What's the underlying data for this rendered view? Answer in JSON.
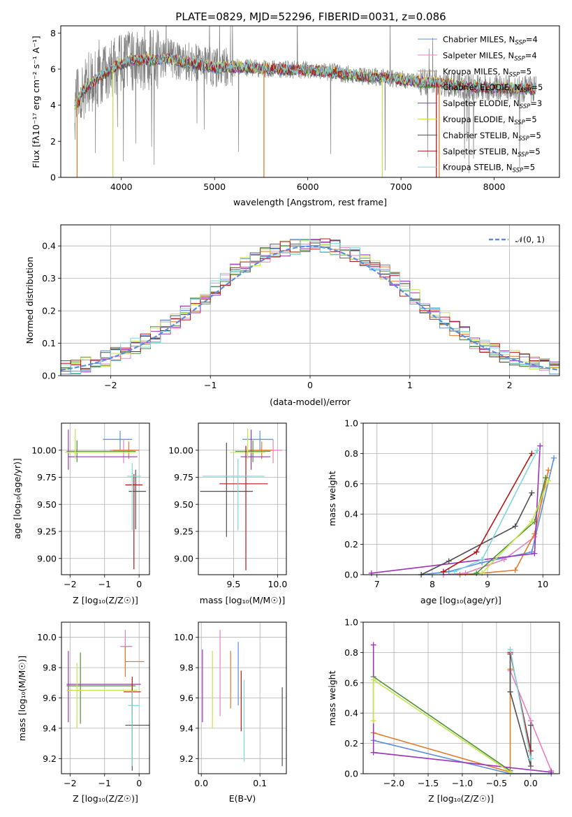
{
  "colors": {
    "chabrier_miles": "#5b8dde",
    "salpeter_miles": "#e582c4",
    "kroupa_miles": "#e07b2c",
    "chabrier_elodie": "#4f8f3a",
    "salpeter_elodie": "#9b34b6",
    "kroupa_elodie": "#c5e34f",
    "chabrier_stelib": "#505050",
    "salpeter_stelib": "#b01818",
    "kroupa_stelib": "#7fd6d9",
    "data_gray": "#7f7f7f",
    "normal_curve": "#5b8dde"
  },
  "chart_data": [
    {
      "type": "line",
      "title": "PLATE=0829, MJD=52296, FIBERID=0031, z=0.086",
      "xlabel": "wavelength [Angstrom, rest frame]",
      "ylabel": "Flux [fλ10⁻¹⁷ erg cm⁻² s⁻¹ A⁻¹]",
      "xlim": [
        3350,
        8700
      ],
      "ylim": [
        0,
        8.4
      ],
      "xticks": [
        4000,
        5000,
        6000,
        7000,
        8000
      ],
      "yticks": [
        0,
        2,
        4,
        6,
        8
      ],
      "grid": false,
      "legend_position": "upper-right",
      "legend": [
        {
          "label": "Chabrier MILES, N",
          "sub": "SSP",
          "tail": "=4"
        },
        {
          "label": "Salpeter MILES, N",
          "sub": "SSP",
          "tail": "=4"
        },
        {
          "label": "Kroupa MILES, N",
          "sub": "SSP",
          "tail": "=5"
        },
        {
          "label": "Chabrier ELODIE, N",
          "sub": "SSP",
          "tail": "=5"
        },
        {
          "label": "Salpeter ELODIE, N",
          "sub": "SSP",
          "tail": "=3"
        },
        {
          "label": "Kroupa ELODIE, N",
          "sub": "SSP",
          "tail": "=5"
        },
        {
          "label": "Chabrier STELIB, N",
          "sub": "SSP",
          "tail": "=5"
        },
        {
          "label": "Salpeter STELIB, N",
          "sub": "SSP",
          "tail": "=5"
        },
        {
          "label": "Kroupa STELIB, N",
          "sub": "SSP",
          "tail": "=5"
        }
      ],
      "continuum": {
        "x": [
          3500,
          3650,
          3800,
          3950,
          4100,
          4300,
          4500,
          4800,
          5000,
          5300,
          5600,
          6000,
          6300,
          6600,
          6900,
          7200,
          7500,
          7800,
          8100,
          8400
        ],
        "y": [
          4.4,
          5.1,
          5.7,
          6.2,
          6.5,
          6.5,
          6.6,
          6.3,
          6.1,
          6.1,
          6.0,
          5.95,
          5.8,
          5.6,
          5.5,
          5.3,
          5.2,
          5.0,
          4.95,
          4.9
        ]
      }
    },
    {
      "type": "histogram",
      "xlabel": "(data-model)/error",
      "ylabel": "Normed distribution",
      "xlim": [
        -2.5,
        2.5
      ],
      "ylim": [
        0,
        0.465
      ],
      "xticks": [
        -2,
        -1,
        0,
        1,
        2
      ],
      "yticks": [
        0.0,
        0.1,
        0.2,
        0.3,
        0.4
      ],
      "grid": true,
      "bin_width": 0.1,
      "legend_position": "upper-right",
      "normal_label": "𝒩(0, 1)",
      "mean_profile": [
        0.022,
        0.029,
        0.036,
        0.044,
        0.054,
        0.065,
        0.077,
        0.092,
        0.108,
        0.127,
        0.148,
        0.17,
        0.194,
        0.218,
        0.244,
        0.27,
        0.296,
        0.32,
        0.34,
        0.358,
        0.373,
        0.385,
        0.394,
        0.398,
        0.4,
        0.4,
        0.398,
        0.394,
        0.385,
        0.373,
        0.358,
        0.34,
        0.32,
        0.296,
        0.27,
        0.244,
        0.218,
        0.194,
        0.17,
        0.148,
        0.127,
        0.108,
        0.092,
        0.077,
        0.065,
        0.054,
        0.044,
        0.036,
        0.029,
        0.022
      ]
    },
    {
      "type": "scatter",
      "xlabel": "Z [log₁₀(Z/Z☉)]",
      "ylabel": "age  [log₁₀(age/yr)]",
      "xlim": [
        -2.25,
        0.3
      ],
      "ylim": [
        8.85,
        10.25
      ],
      "xticks": [
        -2,
        -1,
        0
      ],
      "yticks": [
        9.0,
        9.25,
        9.5,
        9.75,
        10.0
      ],
      "grid": true,
      "points": [
        {
          "model": "chabrier_miles",
          "x": -0.55,
          "y": 10.1,
          "xerr": [
            0.5,
            0.35
          ],
          "yerr": [
            0.1,
            0.08
          ]
        },
        {
          "model": "salpeter_miles",
          "x": -0.45,
          "y": 10.0,
          "xerr": [
            0.4,
            0.3
          ],
          "yerr": [
            0.12,
            0.1
          ]
        },
        {
          "model": "kroupa_miles",
          "x": -0.3,
          "y": 10.0,
          "xerr": [
            0.45,
            0.3
          ],
          "yerr": [
            0.08,
            0.08
          ]
        },
        {
          "model": "chabrier_elodie",
          "x": -1.8,
          "y": 9.99,
          "xerr": [
            0.3,
            1.7
          ],
          "yerr": [
            0.1,
            0.1
          ]
        },
        {
          "model": "salpeter_elodie",
          "x": -2.05,
          "y": 9.94,
          "xerr": [
            0.0,
            2.0
          ],
          "yerr": [
            0.12,
            0.25
          ]
        },
        {
          "model": "kroupa_elodie",
          "x": -1.85,
          "y": 9.98,
          "xerr": [
            0.3,
            1.75
          ],
          "yerr": [
            0.06,
            0.22
          ]
        },
        {
          "model": "chabrier_stelib",
          "x": -0.1,
          "y": 9.62,
          "xerr": [
            0.2,
            0.3
          ],
          "yerr": [
            0.35,
            0.2
          ]
        },
        {
          "model": "salpeter_stelib",
          "x": -0.15,
          "y": 9.68,
          "xerr": [
            0.25,
            0.25
          ],
          "yerr": [
            0.78,
            0.1
          ]
        },
        {
          "model": "kroupa_stelib",
          "x": -0.2,
          "y": 9.76,
          "xerr": [
            0.15,
            0.25
          ],
          "yerr": [
            0.5,
            0.12
          ]
        }
      ]
    },
    {
      "type": "scatter",
      "xlabel": "mass [log₁₀(M/M☉)]",
      "ylabel": "",
      "xlim": [
        9.1,
        10.1
      ],
      "ylim": [
        8.85,
        10.25
      ],
      "xticks": [
        9.5,
        10.0
      ],
      "yticks": [
        9.0,
        9.25,
        9.5,
        9.75,
        10.0
      ],
      "grid": true,
      "points": [
        {
          "model": "chabrier_miles",
          "x": 9.8,
          "y": 10.1,
          "xerr": [
            0.2,
            0.15
          ],
          "yerr": [
            0.1,
            0.08
          ]
        },
        {
          "model": "salpeter_miles",
          "x": 9.95,
          "y": 10.0,
          "xerr": [
            0.1,
            0.1
          ],
          "yerr": [
            0.12,
            0.1
          ]
        },
        {
          "model": "kroupa_miles",
          "x": 9.82,
          "y": 10.0,
          "xerr": [
            0.15,
            0.12
          ],
          "yerr": [
            0.08,
            0.08
          ]
        },
        {
          "model": "chabrier_elodie",
          "x": 9.72,
          "y": 9.99,
          "xerr": [
            0.2,
            0.2
          ],
          "yerr": [
            0.1,
            0.1
          ]
        },
        {
          "model": "salpeter_elodie",
          "x": 9.7,
          "y": 9.94,
          "xerr": [
            0.12,
            0.22
          ],
          "yerr": [
            0.12,
            0.25
          ]
        },
        {
          "model": "kroupa_elodie",
          "x": 9.66,
          "y": 9.98,
          "xerr": [
            0.2,
            0.2
          ],
          "yerr": [
            0.06,
            0.22
          ]
        },
        {
          "model": "chabrier_stelib",
          "x": 9.42,
          "y": 9.62,
          "xerr": [
            0.3,
            0.3
          ],
          "yerr": [
            0.42,
            0.45
          ]
        },
        {
          "model": "salpeter_stelib",
          "x": 9.64,
          "y": 9.69,
          "xerr": [
            0.3,
            0.25
          ],
          "yerr": [
            0.8,
            0.35
          ]
        },
        {
          "model": "kroupa_stelib",
          "x": 9.55,
          "y": 9.76,
          "xerr": [
            0.4,
            0.3
          ],
          "yerr": [
            0.5,
            0.16
          ]
        }
      ]
    },
    {
      "type": "line",
      "xlabel": "age  [log₁₀(age/yr)]",
      "ylabel": "mass weight",
      "xlim": [
        6.75,
        10.3
      ],
      "ylim": [
        0,
        1.0
      ],
      "xticks": [
        7,
        8,
        9,
        10
      ],
      "yticks": [
        0.0,
        0.2,
        0.4,
        0.6,
        0.8,
        1.0
      ],
      "grid": true,
      "series": [
        {
          "model": "chabrier_miles",
          "x": [
            7.8,
            8.3,
            8.9,
            9.8,
            10.2
          ],
          "y": [
            0.0,
            0.02,
            0.08,
            0.15,
            0.77
          ]
        },
        {
          "model": "salpeter_miles",
          "x": [
            8.2,
            8.6,
            9.3,
            9.85,
            10.05
          ],
          "y": [
            0.0,
            0.01,
            0.1,
            0.25,
            0.64
          ]
        },
        {
          "model": "kroupa_miles",
          "x": [
            8.5,
            8.9,
            9.5,
            9.85,
            10.1
          ],
          "y": [
            0.0,
            0.01,
            0.03,
            0.27,
            0.69
          ]
        },
        {
          "model": "chabrier_elodie",
          "x": [
            8.8,
            9.85,
            10.05
          ],
          "y": [
            0.01,
            0.35,
            0.64
          ]
        },
        {
          "model": "salpeter_elodie",
          "x": [
            6.9,
            9.85,
            9.95
          ],
          "y": [
            0.01,
            0.14,
            0.85
          ]
        },
        {
          "model": "kroupa_elodie",
          "x": [
            8.9,
            9.8,
            10.1
          ],
          "y": [
            0.01,
            0.35,
            0.62
          ]
        },
        {
          "model": "chabrier_stelib",
          "x": [
            7.8,
            8.3,
            9.5,
            9.8
          ],
          "y": [
            0.0,
            0.09,
            0.32,
            0.54
          ]
        },
        {
          "model": "salpeter_stelib",
          "x": [
            8.2,
            8.8,
            9.8
          ],
          "y": [
            0.02,
            0.15,
            0.8
          ]
        },
        {
          "model": "kroupa_stelib",
          "x": [
            8.4,
            8.9,
            9.9
          ],
          "y": [
            0.02,
            0.1,
            0.82
          ]
        }
      ]
    },
    {
      "type": "scatter",
      "xlabel": "Z [log₁₀(Z/Z☉)]",
      "ylabel": "mass [log₁₀(M/M☉)]",
      "xlim": [
        -2.25,
        0.3
      ],
      "ylim": [
        9.1,
        10.1
      ],
      "xticks": [
        -2,
        -1,
        0
      ],
      "yticks": [
        9.2,
        9.4,
        9.6,
        9.8,
        10.0
      ],
      "grid": true,
      "points": [
        {
          "model": "chabrier_miles",
          "x": -0.4,
          "y": 9.94,
          "xerr": [
            0.1,
            0.2
          ],
          "yerr": [
            0.1,
            0.05
          ]
        },
        {
          "model": "salpeter_miles",
          "x": -0.4,
          "y": 9.94,
          "xerr": [
            0.15,
            0.2
          ],
          "yerr": [
            0.15,
            0.11
          ]
        },
        {
          "model": "kroupa_miles",
          "x": -0.4,
          "y": 9.84,
          "xerr": [
            0.0,
            0.55
          ],
          "yerr": [
            0.1,
            0.1
          ]
        },
        {
          "model": "chabrier_elodie",
          "x": -1.7,
          "y": 9.68,
          "xerr": [
            0.4,
            1.6
          ],
          "yerr": [
            0.25,
            0.22
          ]
        },
        {
          "model": "salpeter_elodie",
          "x": -2.05,
          "y": 9.69,
          "xerr": [
            0.05,
            2.1
          ],
          "yerr": [
            0.25,
            0.22
          ]
        },
        {
          "model": "kroupa_elodie",
          "x": -1.8,
          "y": 9.65,
          "xerr": [
            0.3,
            1.75
          ],
          "yerr": [
            0.25,
            0.18
          ]
        },
        {
          "model": "chabrier_stelib",
          "x": -0.2,
          "y": 9.42,
          "xerr": [
            0.2,
            0.5
          ],
          "yerr": [
            0.3,
            0.25
          ]
        },
        {
          "model": "salpeter_stelib",
          "x": -0.2,
          "y": 9.64,
          "xerr": [
            0.25,
            0.25
          ],
          "yerr": [
            0.15,
            0.1
          ]
        },
        {
          "model": "kroupa_stelib",
          "x": -0.2,
          "y": 9.55,
          "xerr": [
            0.12,
            0.22
          ],
          "yerr": [
            0.4,
            0.1
          ]
        }
      ]
    },
    {
      "type": "scatter",
      "xlabel": "E(B-V)",
      "ylabel": "",
      "xlim": [
        -0.005,
        0.145
      ],
      "ylim": [
        9.1,
        10.1
      ],
      "xticks": [
        0.0,
        0.1
      ],
      "yticks": [
        9.2,
        9.4,
        9.6,
        9.8,
        10.0
      ],
      "grid": true,
      "bars": [
        {
          "model": "salpeter_elodie",
          "x": 0.002,
          "y_lo": 9.44,
          "y_hi": 9.92
        },
        {
          "model": "kroupa_elodie",
          "x": 0.019,
          "y_lo": 9.4,
          "y_hi": 9.91
        },
        {
          "model": "salpeter_miles",
          "x": 0.032,
          "y_lo": 9.48,
          "y_hi": 10.05
        },
        {
          "model": "kroupa_miles",
          "x": 0.05,
          "y_lo": 9.53,
          "y_hi": 9.91
        },
        {
          "model": "chabrier_miles",
          "x": 0.063,
          "y_lo": 9.55,
          "y_hi": 9.97
        },
        {
          "model": "salpeter_stelib",
          "x": 0.068,
          "y_lo": 9.38,
          "y_hi": 9.78
        },
        {
          "model": "kroupa_stelib",
          "x": 0.073,
          "y_lo": 9.18,
          "y_hi": 9.72
        },
        {
          "model": "chabrier_stelib",
          "x": 0.138,
          "y_lo": 9.15,
          "y_hi": 9.67
        }
      ]
    },
    {
      "type": "line",
      "xlabel": "Z [log₁₀(Z/Z☉)]",
      "ylabel": "mass weight",
      "xlim": [
        -2.45,
        0.42
      ],
      "ylim": [
        0,
        1.0
      ],
      "xticks": [
        -2.0,
        -1.5,
        -1.0,
        -0.5,
        0.0
      ],
      "yticks": [
        0.0,
        0.2,
        0.4,
        0.6,
        0.8,
        1.0
      ],
      "grid": true,
      "series": [
        {
          "model": "chabrier_miles",
          "x": [
            -2.3,
            -0.3,
            0.3
          ],
          "y": [
            0.22,
            0.0,
            0.0
          ]
        },
        {
          "model": "salpeter_miles",
          "x": [
            -0.3,
            0.0,
            0.3
          ],
          "y": [
            0.68,
            0.35,
            0.02
          ]
        },
        {
          "model": "kroupa_miles",
          "x": [
            -2.3,
            -0.3,
            -0.3
          ],
          "y": [
            0.27,
            0.01,
            0.69
          ]
        },
        {
          "model": "chabrier_elodie",
          "x": [
            -2.3,
            -0.3
          ],
          "y": [
            0.64,
            0.02
          ]
        },
        {
          "model": "salpeter_elodie",
          "x": [
            -2.3,
            -2.3,
            0.3
          ],
          "y": [
            0.85,
            0.14,
            0.01
          ]
        },
        {
          "model": "kroupa_elodie",
          "x": [
            -2.3,
            -2.3,
            -0.3
          ],
          "y": [
            0.35,
            0.62,
            0.01
          ]
        },
        {
          "model": "chabrier_stelib",
          "x": [
            -0.3,
            -0.3,
            0.0,
            0.0
          ],
          "y": [
            0.79,
            0.54,
            0.05,
            0.32
          ]
        },
        {
          "model": "salpeter_stelib",
          "x": [
            -0.3,
            0.0
          ],
          "y": [
            0.8,
            0.15
          ]
        },
        {
          "model": "kroupa_stelib",
          "x": [
            -0.3,
            0.0
          ],
          "y": [
            0.82,
            0.1
          ]
        }
      ]
    }
  ]
}
